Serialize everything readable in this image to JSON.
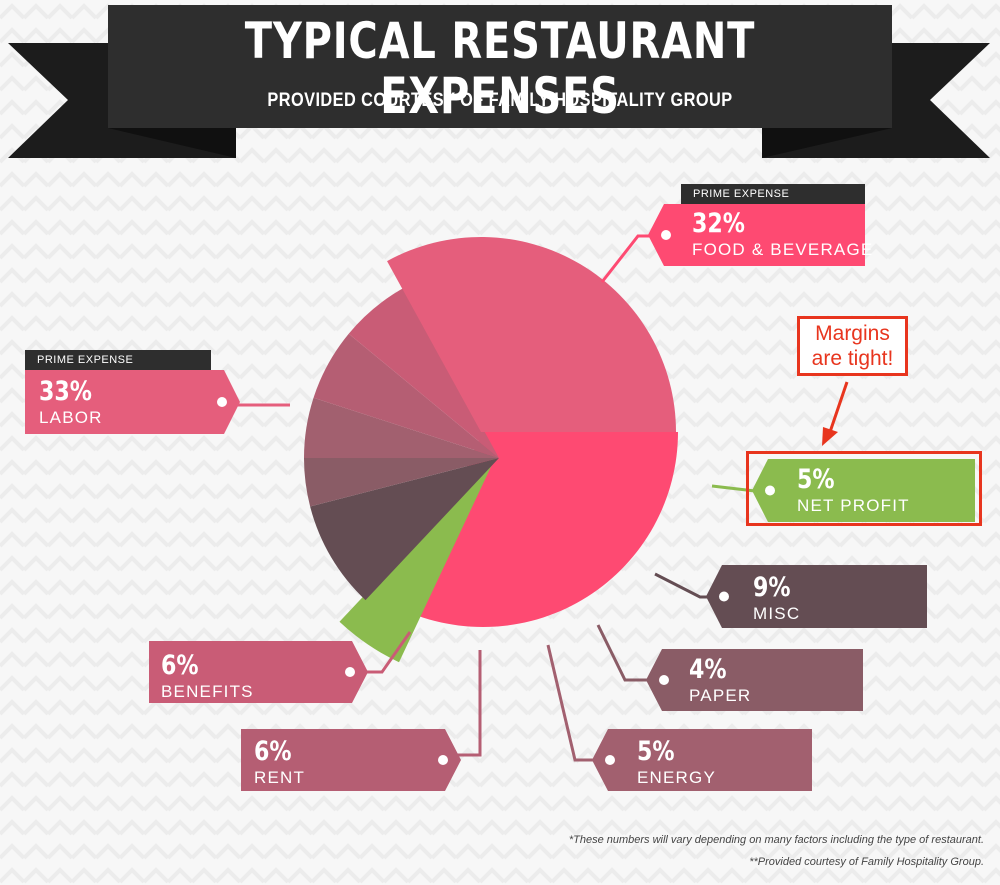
{
  "banner": {
    "title": "TYPICAL RESTAURANT EXPENSES",
    "subtitle": "PROVIDED COURTESY OF FAMILY HOSPITALITY GROUP"
  },
  "colors": {
    "food_beverage": "#fe4a72",
    "labor": "#e55e7c",
    "benefits": "#c95c76",
    "rent": "#b55e73",
    "energy": "#a2606f",
    "paper": "#8a5c66",
    "misc": "#644d53",
    "net_profit": "#8bbb4e",
    "dark": "#2e2e2e",
    "callout": "#e8351e"
  },
  "chart_data": {
    "type": "pie",
    "title": "TYPICAL RESTAURANT EXPENSES",
    "subtitle": "PROVIDED COURTESY OF FAMILY HOSPITALITY GROUP",
    "unit": "%",
    "slices": [
      {
        "label": "FOOD & BEVERAGE",
        "value": 32,
        "pct_label": "32%",
        "tag": "PRIME EXPENSE"
      },
      {
        "label": "NET PROFIT",
        "value": 5,
        "pct_label": "5%"
      },
      {
        "label": "MISC",
        "value": 9,
        "pct_label": "9%"
      },
      {
        "label": "PAPER",
        "value": 4,
        "pct_label": "4%"
      },
      {
        "label": "ENERGY",
        "value": 5,
        "pct_label": "5%"
      },
      {
        "label": "RENT",
        "value": 6,
        "pct_label": "6%"
      },
      {
        "label": "BENEFITS",
        "value": 6,
        "pct_label": "6%"
      },
      {
        "label": "LABOR",
        "value": 33,
        "pct_label": "33%",
        "tag": "PRIME EXPENSE"
      }
    ]
  },
  "callout": {
    "line1": "Margins",
    "line2": "are tight!"
  },
  "footnotes": {
    "line1": "*These numbers will vary depending on many factors including the type of restaurant.",
    "line2": "**Provided courtesy of Family Hospitality Group."
  }
}
